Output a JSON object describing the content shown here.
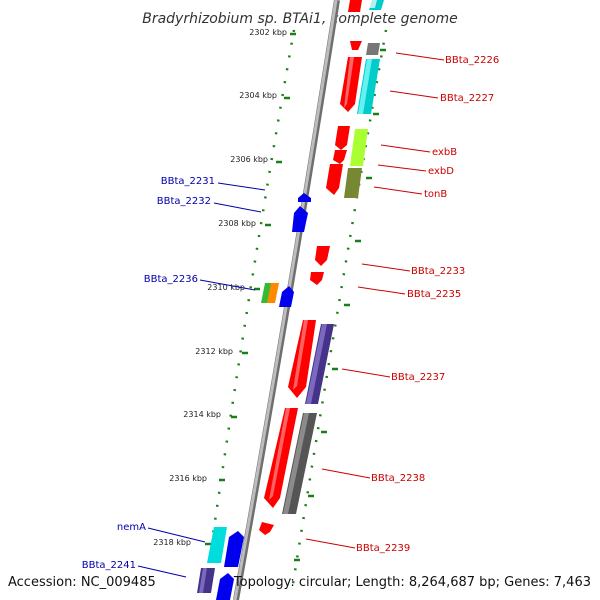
{
  "title": "Bradyrhizobium sp. BTAi1, complete genome",
  "accession": "Accession: NC_009485",
  "topology": "Topology: circular; Length: 8,264,687 bp; Genes: 7,463",
  "kbp_labels": [
    "2302 kbp",
    "2304 kbp",
    "2306 kbp",
    "2308 kbp",
    "2310 kbp",
    "2312 kbp",
    "2314 kbp",
    "2316 kbp",
    "2318 kbp"
  ],
  "gene_labels": {
    "bbta_2226": "BBta_2226",
    "bbta_2227": "BBta_2227",
    "exbb": "exbB",
    "exbd": "exbD",
    "tonb": "tonB",
    "bbta_2233": "BBta_2233",
    "bbta_2235": "BBta_2235",
    "bbta_2237": "BBta_2237",
    "bbta_2238": "BBta_2238",
    "bbta_2239": "BBta_2239",
    "bbta_2231": "BBta_2231",
    "bbta_2232": "BBta_2232",
    "bbta_2236": "BBta_2236",
    "nema": "nemA",
    "bbta_2241": "BBta_2241"
  },
  "colors": {
    "forward_label": "#cc0000",
    "reverse_label": "#0000aa",
    "tick": "#227722",
    "backbone": "#a6a6a6"
  }
}
